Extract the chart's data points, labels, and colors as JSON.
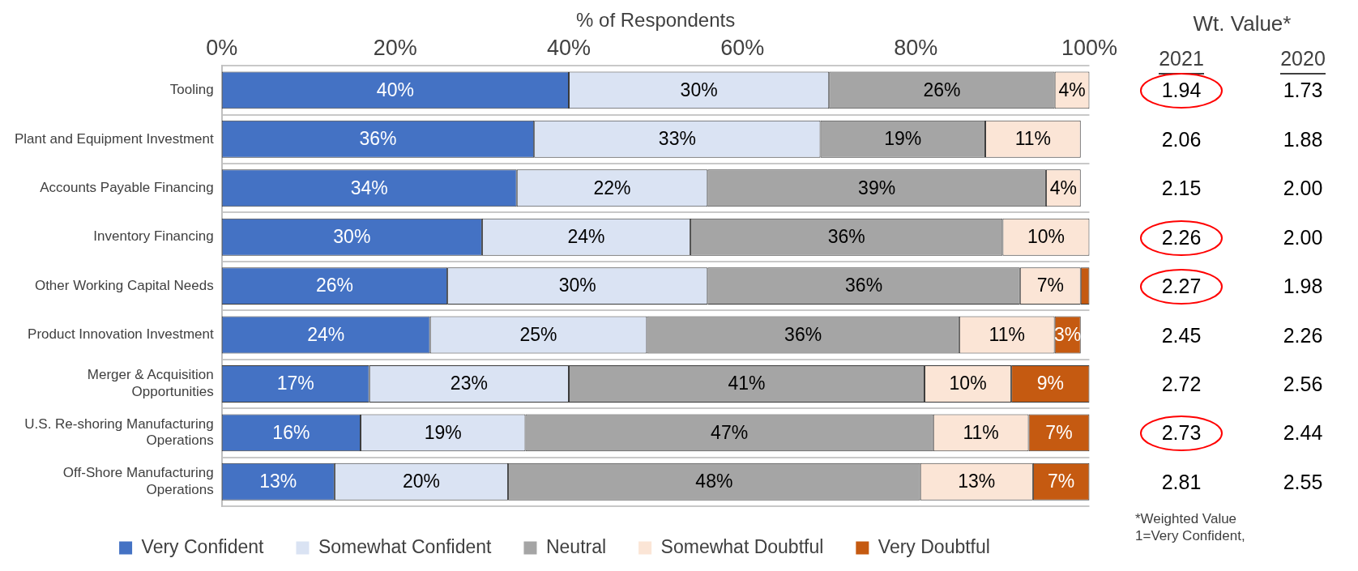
{
  "chart_data": [
    {
      "type": "bar",
      "orientation": "horizontal",
      "stacked": true,
      "xlabel": "% of Respondents",
      "categories": [
        "Tooling",
        "Plant and Equipment Investment",
        "Accounts Payable Financing",
        "Inventory Financing",
        "Other Working Capital Needs",
        "Product Innovation Investment",
        "Merger & Acquisition Opportunities",
        "U.S. Re-shoring Manufacturing Operations",
        "Off-Shore Manufacturing Operations"
      ],
      "series": [
        {
          "name": "Very Confident",
          "color": "#4472c4",
          "values": [
            40,
            36,
            34,
            30,
            26,
            24,
            17,
            16,
            13
          ],
          "value_labels": [
            "40%",
            "36%",
            "34%",
            "30%",
            "26%",
            "24%",
            "17%",
            "16%",
            "13%"
          ]
        },
        {
          "name": "Somewhat Confident",
          "color": "#dae3f3",
          "values": [
            30,
            33,
            22,
            24,
            30,
            25,
            23,
            19,
            20
          ],
          "value_labels": [
            "30%",
            "33%",
            "22%",
            "24%",
            "30%",
            "25%",
            "23%",
            "19%",
            "20%"
          ]
        },
        {
          "name": "Neutral",
          "color": "#a5a5a5",
          "values": [
            26,
            19,
            39,
            36,
            36,
            36,
            41,
            47,
            47.5
          ],
          "value_labels": [
            "26%",
            "19%",
            "39%",
            "36%",
            "36%",
            "36%",
            "41%",
            "47%",
            "48%"
          ]
        },
        {
          "name": "Somewhat Doubtful",
          "color": "#fbe5d6",
          "values": [
            4,
            11,
            4,
            10,
            7,
            11,
            10,
            11,
            13
          ],
          "value_labels": [
            "4%",
            "11%",
            "4%",
            "10%",
            "7%",
            "11%",
            "10%",
            "11%",
            "13%"
          ]
        },
        {
          "name": "Very Doubtful",
          "color": "#c55a11",
          "values": [
            0,
            0,
            0,
            0,
            1,
            3,
            9,
            7,
            6.5
          ],
          "value_labels": [
            null,
            null,
            null,
            null,
            null,
            "3%",
            "9%",
            "7%",
            "7%"
          ]
        }
      ],
      "xlim": [
        0,
        100
      ],
      "xticks": [
        {
          "value": 0,
          "label": "0%"
        },
        {
          "value": 20,
          "label": "20%"
        },
        {
          "value": 40,
          "label": "40%"
        },
        {
          "value": 60,
          "label": "60%"
        },
        {
          "value": 80,
          "label": "80%"
        },
        {
          "value": 100,
          "label": "100%"
        }
      ],
      "grid": "y",
      "legend": "bottom"
    },
    {
      "type": "other",
      "title": "Wt. Value*",
      "categories": [
        "2021",
        "2020"
      ],
      "cell_labels": [
        [
          "1.94",
          "1.73"
        ],
        [
          "2.06",
          "1.88"
        ],
        [
          "2.15",
          "2.00"
        ],
        [
          "2.26",
          "2.00"
        ],
        [
          "2.27",
          "1.98"
        ],
        [
          "2.45",
          "2.26"
        ],
        [
          "2.72",
          "2.56"
        ],
        [
          "2.73",
          "2.44"
        ],
        [
          "2.81",
          "2.55"
        ]
      ],
      "annotations": [
        "*Weighted Value",
        "1=Very Confident,"
      ]
    }
  ]
}
